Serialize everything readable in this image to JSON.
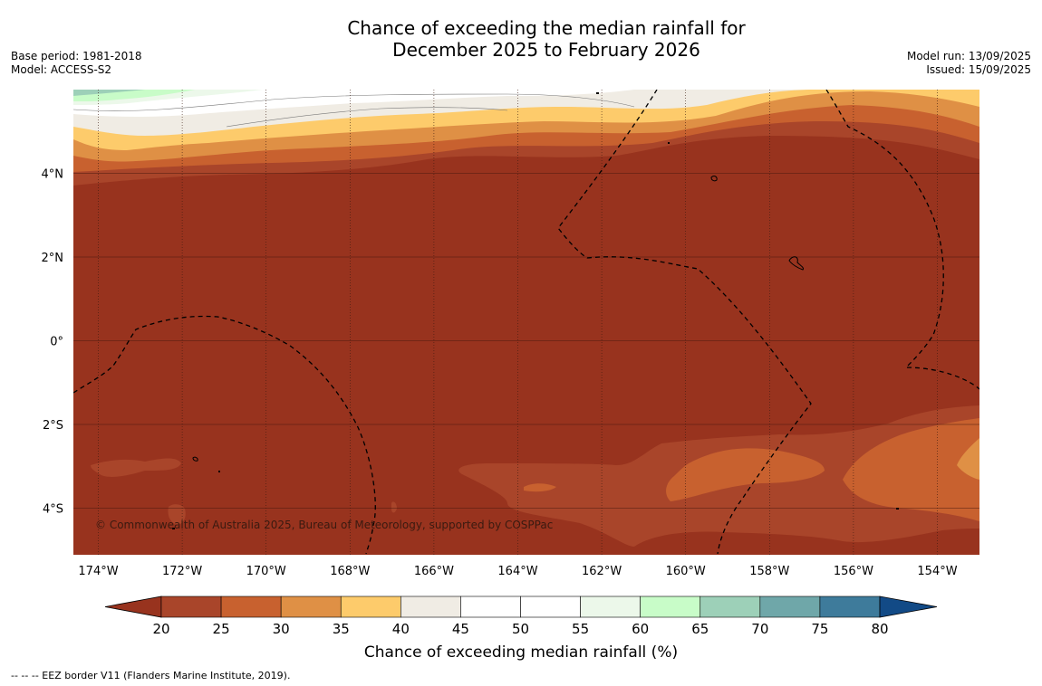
{
  "title": {
    "line1": "Chance of exceeding the median rainfall for",
    "line2": "December 2025 to February 2026"
  },
  "meta_left": {
    "base_period": "Base period: 1981-2018",
    "model": "Model: ACCESS-S2"
  },
  "meta_right": {
    "model_run": "Model run: 13/09/2025",
    "issued": "Issued: 15/09/2025"
  },
  "map": {
    "lat_labels": [
      "4°N",
      "2°N",
      "0°",
      "2°S",
      "4°S"
    ],
    "lat_values": [
      4,
      2,
      0,
      -2,
      -4
    ],
    "lon_labels": [
      "174°W",
      "172°W",
      "170°W",
      "168°W",
      "166°W",
      "164°W",
      "162°W",
      "160°W",
      "158°W",
      "156°W",
      "154°W"
    ],
    "lon_values": [
      -174,
      -172,
      -170,
      -168,
      -166,
      -164,
      -162,
      -160,
      -158,
      -156,
      -154
    ],
    "copyright": "© Commonwealth of Australia 2025, Bureau of Meteorology, supported by COSPPac",
    "background_color": "#98331e"
  },
  "colorbar": {
    "ticks": [
      "20",
      "25",
      "30",
      "35",
      "40",
      "45",
      "50",
      "55",
      "60",
      "65",
      "70",
      "75",
      "80"
    ],
    "colors": [
      "#a9452a",
      "#c8612f",
      "#df9045",
      "#fdcb6b",
      "#f0ece4",
      "#ffffff",
      "#ffffff",
      "#ecf8ea",
      "#c8fcc8",
      "#9dd0b8",
      "#6fa7a9",
      "#3e7b9b"
    ],
    "under_color": "#98331e",
    "over_color": "#124a86",
    "label": "Chance of exceeding median rainfall (%)"
  },
  "footnote": "--  --  -- EEZ border V11 (Flanders Marine Institute, 2019)."
}
